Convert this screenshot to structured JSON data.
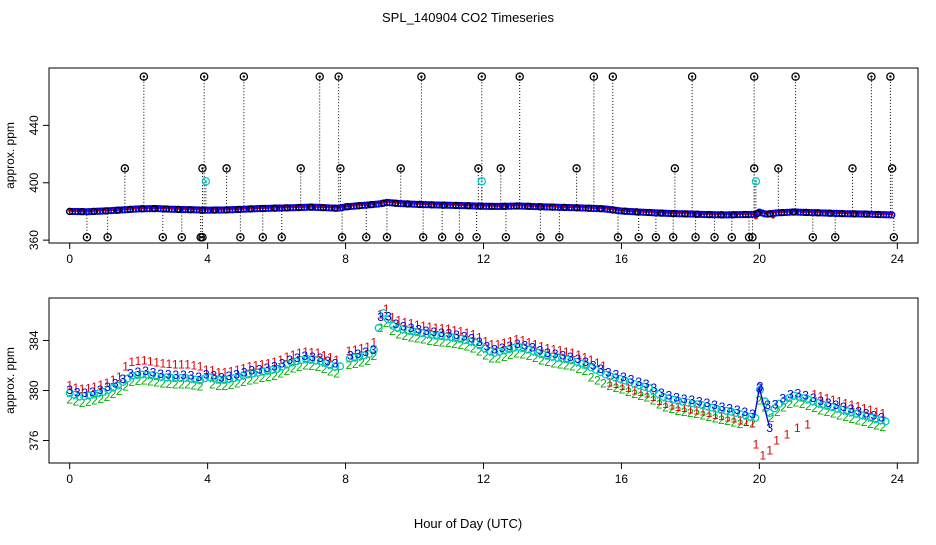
{
  "figure": {
    "title": "SPL_140904  CO2 Timeseries",
    "xlabel": "Hour of Day (UTC)"
  },
  "chart_data": [
    {
      "type": "scatter",
      "panel": "top",
      "ylabel": "approx. ppm",
      "xlim": [
        -0.6,
        24.6
      ],
      "ylim": [
        358,
        480
      ],
      "x_ticks": [
        0,
        4,
        8,
        12,
        16,
        20,
        24
      ],
      "x_tick_labels": [
        "0",
        "4",
        "8",
        "12",
        "16",
        "20",
        "24"
      ],
      "y_ticks": [
        360,
        400,
        440
      ],
      "y_tick_labels": [
        "360",
        "400",
        "440"
      ],
      "colors": {
        "black": "#000000",
        "cyan": "#00c8c8",
        "red": "#e00000",
        "blue": "#0000e0"
      },
      "black_high_x": [
        2.15,
        3.9,
        5.05,
        7.25,
        7.8,
        10.2,
        11.95,
        13.05,
        15.2,
        15.75,
        18.05,
        19.85,
        21.05,
        23.25,
        23.8
      ],
      "black_mid_x": [
        1.6,
        3.85,
        4.55,
        6.7,
        7.85,
        9.6,
        11.85,
        12.5,
        14.7,
        17.55,
        19.85,
        20.55,
        22.7,
        23.85
      ],
      "black_low_x": [
        0.5,
        1.1,
        2.7,
        3.25,
        3.8,
        3.85,
        4.95,
        5.6,
        6.15,
        7.9,
        8.6,
        9.2,
        10.25,
        10.8,
        11.3,
        11.8,
        12.65,
        13.65,
        14.2,
        15.9,
        16.5,
        17.0,
        17.5,
        18.15,
        18.7,
        19.2,
        19.7,
        19.8,
        21.55,
        22.2,
        23.9
      ],
      "cyan_x": [
        3.95,
        11.95,
        19.9
      ],
      "base_series_x": [
        0.0,
        0.5,
        1.0,
        1.5,
        2.0,
        2.5,
        3.0,
        3.5,
        3.8,
        3.9,
        4.0,
        4.5,
        5.0,
        5.5,
        6.0,
        6.5,
        7.0,
        7.5,
        7.8,
        8.0,
        8.5,
        9.0,
        9.2,
        9.5,
        10.0,
        10.5,
        11.0,
        11.5,
        12.0,
        12.5,
        13.0,
        13.5,
        14.0,
        14.5,
        15.0,
        15.5,
        16.0,
        16.5,
        17.0,
        17.5,
        18.0,
        18.5,
        19.0,
        19.5,
        19.9,
        20.0,
        20.2,
        20.5,
        21.0,
        21.5,
        22.0,
        22.5,
        23.0,
        23.5,
        23.8
      ],
      "base_series_y": [
        380.0,
        379.8,
        380.3,
        381.0,
        381.8,
        382.0,
        381.5,
        381.2,
        381.0,
        380.8,
        380.9,
        381.0,
        381.5,
        382.0,
        382.3,
        382.6,
        383.0,
        382.5,
        382.2,
        383.2,
        384.2,
        385.3,
        386.3,
        385.6,
        385.0,
        384.6,
        384.3,
        384.0,
        383.6,
        383.5,
        383.8,
        383.4,
        383.0,
        382.7,
        382.3,
        381.8,
        380.3,
        379.6,
        379.0,
        378.5,
        378.2,
        377.8,
        377.6,
        377.8,
        378.0,
        379.5,
        378.0,
        379.0,
        379.6,
        379.2,
        378.8,
        378.4,
        378.2,
        377.8,
        377.6
      ],
      "red_low_x": [
        19.9,
        20.4
      ],
      "red_low_y": [
        376.0,
        376.5
      ]
    },
    {
      "type": "scatter",
      "panel": "bottom",
      "ylabel": "approx. ppm",
      "xlim": [
        -0.6,
        24.6
      ],
      "ylim": [
        374.2,
        387.4
      ],
      "x_ticks": [
        0,
        4,
        8,
        12,
        16,
        20,
        24
      ],
      "x_tick_labels": [
        "0",
        "4",
        "8",
        "12",
        "16",
        "20",
        "24"
      ],
      "y_ticks": [
        376,
        380,
        384
      ],
      "y_tick_labels": [
        "376",
        "380",
        "384"
      ],
      "series": [
        {
          "name": "1",
          "symbol": "1",
          "color": "#e00000",
          "y_offset": 0.6
        },
        {
          "name": "2",
          "symbol": "2",
          "color": "#00b000",
          "y_offset": -0.5
        },
        {
          "name": "3",
          "symbol": "3",
          "color": "#0000e0",
          "y_offset": 0.25
        },
        {
          "name": "o",
          "symbol": "circle",
          "color": "#00c8c8",
          "y_offset": 0.0
        }
      ],
      "x": [
        0.0,
        0.3,
        0.6,
        1.0,
        1.4,
        1.8,
        2.2,
        2.6,
        3.0,
        3.4,
        3.8,
        4.0,
        4.4,
        4.8,
        5.2,
        5.6,
        6.0,
        6.4,
        6.8,
        7.2,
        7.6,
        7.8,
        8.0,
        8.4,
        8.8,
        9.0,
        9.1,
        9.4,
        9.8,
        10.2,
        10.6,
        11.0,
        11.4,
        11.8,
        12.0,
        12.3,
        12.6,
        13.0,
        13.4,
        13.8,
        14.2,
        14.6,
        15.0,
        15.3,
        15.6,
        16.0,
        16.4,
        16.8,
        17.2,
        17.6,
        18.0,
        18.4,
        18.8,
        19.2,
        19.6,
        19.9,
        20.0,
        20.3,
        20.6,
        21.0,
        21.4,
        21.8,
        22.2,
        22.6,
        23.0,
        23.4,
        23.7
      ],
      "y": [
        379.8,
        379.5,
        379.6,
        379.9,
        380.4,
        381.2,
        381.3,
        381.1,
        381.0,
        381.0,
        380.8,
        381.1,
        380.8,
        381.0,
        381.3,
        381.5,
        381.7,
        382.2,
        382.5,
        382.4,
        382.0,
        381.8,
        382.5,
        382.7,
        383.0,
        385.5,
        386.2,
        385.1,
        384.8,
        384.6,
        384.4,
        384.3,
        384.1,
        383.8,
        383.4,
        383.0,
        383.2,
        383.5,
        383.2,
        382.8,
        382.6,
        382.4,
        382.0,
        381.6,
        381.2,
        380.9,
        380.5,
        380.2,
        379.5,
        379.2,
        379.0,
        378.8,
        378.5,
        378.3,
        378.0,
        377.8,
        380.2,
        378.2,
        379.0,
        379.6,
        379.3,
        378.9,
        378.6,
        378.3,
        378.0,
        377.7,
        377.5
      ],
      "series1_x": [
        19.9,
        20.1,
        20.3,
        20.5,
        20.8,
        21.1,
        21.4
      ],
      "series1_y": [
        375.7,
        374.8,
        375.2,
        376.0,
        376.5,
        377.0,
        377.3
      ],
      "series3_x": [
        20.0,
        20.3
      ],
      "series3_y": [
        380.2,
        377.0
      ]
    }
  ]
}
